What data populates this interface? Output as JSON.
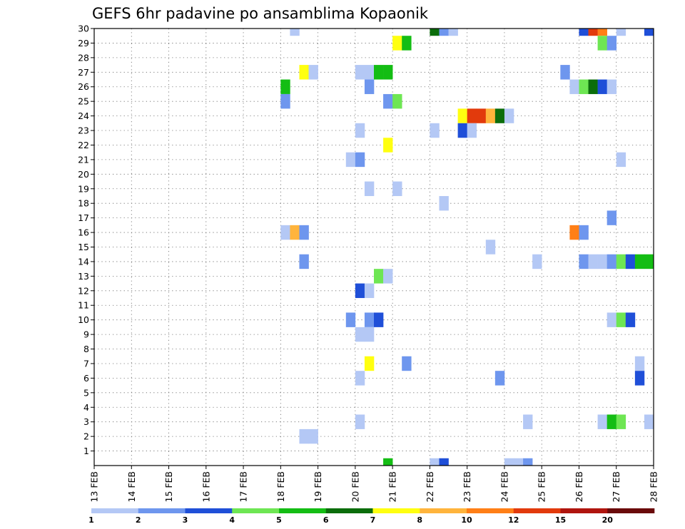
{
  "chart_data": {
    "type": "heatmap",
    "title": "GEFS 6hr padavine po ansamblima Kopaonik",
    "x_ticks": [
      "13 FEB",
      "14 FEB",
      "15 FEB",
      "16 FEB",
      "17 FEB",
      "18 FEB",
      "19 FEB",
      "20 FEB",
      "21 FEB",
      "22 FEB",
      "23 FEB",
      "24 FEB",
      "25 FEB",
      "26 FEB",
      "27 FEB",
      "28 FEB"
    ],
    "y_ticks": [
      "1",
      "2",
      "3",
      "4",
      "5",
      "6",
      "7",
      "8",
      "9",
      "10",
      "11",
      "12",
      "13",
      "14",
      "15",
      "16",
      "17",
      "18",
      "19",
      "20",
      "21",
      "22",
      "23",
      "24",
      "25",
      "26",
      "27",
      "28",
      "29",
      "30"
    ],
    "xlim": [
      "13 FEB",
      "28 FEB"
    ],
    "ylim": [
      0,
      30
    ],
    "grid": true,
    "time_step_hours": 6,
    "colorbar": {
      "labels": [
        "1",
        "2",
        "3",
        "4",
        "5",
        "6",
        "7",
        "8",
        "10",
        "12",
        "15",
        "20"
      ],
      "colors": [
        "#b4c8f5",
        "#6e96ee",
        "#1f4fd8",
        "#6ee653",
        "#14bd14",
        "#0b6d0b",
        "#ffff10",
        "#ffb43c",
        "#ff7f17",
        "#e23a0c",
        "#b0150e",
        "#6a0a0a"
      ]
    },
    "cells_legend": "each cell = [member, day, hour, color_class]; color_class 0 means >=1, 1 means >=2, ... 11 means >=20",
    "cells": [
      [
        30,
        18,
        6,
        0
      ],
      [
        30,
        22,
        0,
        5
      ],
      [
        30,
        22,
        6,
        1
      ],
      [
        30,
        22,
        12,
        0
      ],
      [
        30,
        26,
        0,
        2
      ],
      [
        30,
        26,
        6,
        9
      ],
      [
        30,
        26,
        12,
        8
      ],
      [
        30,
        27,
        0,
        0
      ],
      [
        30,
        27,
        18,
        2
      ],
      [
        29,
        21,
        0,
        6
      ],
      [
        29,
        21,
        6,
        4
      ],
      [
        29,
        26,
        12,
        3
      ],
      [
        29,
        26,
        18,
        1
      ],
      [
        27,
        18,
        12,
        6
      ],
      [
        27,
        18,
        18,
        0
      ],
      [
        27,
        20,
        0,
        0
      ],
      [
        27,
        20,
        6,
        0
      ],
      [
        27,
        20,
        12,
        4
      ],
      [
        27,
        20,
        18,
        4
      ],
      [
        27,
        25,
        12,
        1
      ],
      [
        26,
        18,
        0,
        4
      ],
      [
        26,
        20,
        6,
        1
      ],
      [
        26,
        25,
        18,
        0
      ],
      [
        26,
        26,
        0,
        3
      ],
      [
        26,
        26,
        6,
        5
      ],
      [
        26,
        26,
        12,
        2
      ],
      [
        26,
        26,
        18,
        0
      ],
      [
        25,
        18,
        0,
        1
      ],
      [
        25,
        20,
        18,
        1
      ],
      [
        25,
        21,
        0,
        3
      ],
      [
        24,
        22,
        18,
        6
      ],
      [
        24,
        23,
        0,
        9
      ],
      [
        24,
        23,
        6,
        9
      ],
      [
        24,
        23,
        12,
        7
      ],
      [
        24,
        23,
        18,
        5
      ],
      [
        24,
        24,
        0,
        0
      ],
      [
        23,
        20,
        0,
        0
      ],
      [
        23,
        22,
        0,
        0
      ],
      [
        23,
        22,
        18,
        2
      ],
      [
        23,
        23,
        0,
        0
      ],
      [
        22,
        20,
        18,
        6
      ],
      [
        21,
        19,
        18,
        0
      ],
      [
        21,
        20,
        0,
        1
      ],
      [
        21,
        27,
        0,
        0
      ],
      [
        19,
        20,
        6,
        0
      ],
      [
        19,
        21,
        0,
        0
      ],
      [
        18,
        22,
        6,
        0
      ],
      [
        17,
        26,
        18,
        1
      ],
      [
        16,
        18,
        0,
        0
      ],
      [
        16,
        18,
        6,
        7
      ],
      [
        16,
        18,
        12,
        1
      ],
      [
        16,
        25,
        18,
        8
      ],
      [
        16,
        26,
        0,
        1
      ],
      [
        15,
        23,
        12,
        0
      ],
      [
        14,
        18,
        12,
        1
      ],
      [
        14,
        24,
        18,
        0
      ],
      [
        14,
        26,
        0,
        1
      ],
      [
        14,
        26,
        6,
        0
      ],
      [
        14,
        26,
        12,
        0
      ],
      [
        14,
        26,
        18,
        1
      ],
      [
        14,
        27,
        0,
        3
      ],
      [
        14,
        27,
        6,
        2
      ],
      [
        14,
        27,
        12,
        4
      ],
      [
        14,
        27,
        18,
        4
      ],
      [
        13,
        20,
        12,
        3
      ],
      [
        13,
        20,
        18,
        0
      ],
      [
        12,
        20,
        0,
        2
      ],
      [
        12,
        20,
        6,
        0
      ],
      [
        10,
        19,
        18,
        1
      ],
      [
        10,
        20,
        6,
        1
      ],
      [
        10,
        20,
        12,
        2
      ],
      [
        10,
        26,
        18,
        0
      ],
      [
        10,
        27,
        0,
        3
      ],
      [
        10,
        27,
        6,
        2
      ],
      [
        9,
        20,
        0,
        0
      ],
      [
        9,
        20,
        6,
        0
      ],
      [
        7,
        20,
        6,
        6
      ],
      [
        7,
        21,
        6,
        1
      ],
      [
        7,
        27,
        12,
        0
      ],
      [
        6,
        20,
        0,
        0
      ],
      [
        6,
        23,
        18,
        1
      ],
      [
        6,
        27,
        12,
        2
      ],
      [
        3,
        20,
        0,
        0
      ],
      [
        3,
        24,
        12,
        0
      ],
      [
        3,
        26,
        12,
        0
      ],
      [
        3,
        26,
        18,
        4
      ],
      [
        3,
        27,
        0,
        3
      ],
      [
        3,
        27,
        18,
        0
      ],
      [
        2,
        18,
        18,
        0
      ],
      [
        2,
        18,
        12,
        0
      ],
      [
        0,
        20,
        18,
        4
      ],
      [
        0,
        22,
        0,
        0
      ],
      [
        0,
        22,
        6,
        2
      ],
      [
        0,
        24,
        0,
        0
      ],
      [
        0,
        24,
        6,
        0
      ],
      [
        0,
        24,
        12,
        1
      ]
    ]
  }
}
